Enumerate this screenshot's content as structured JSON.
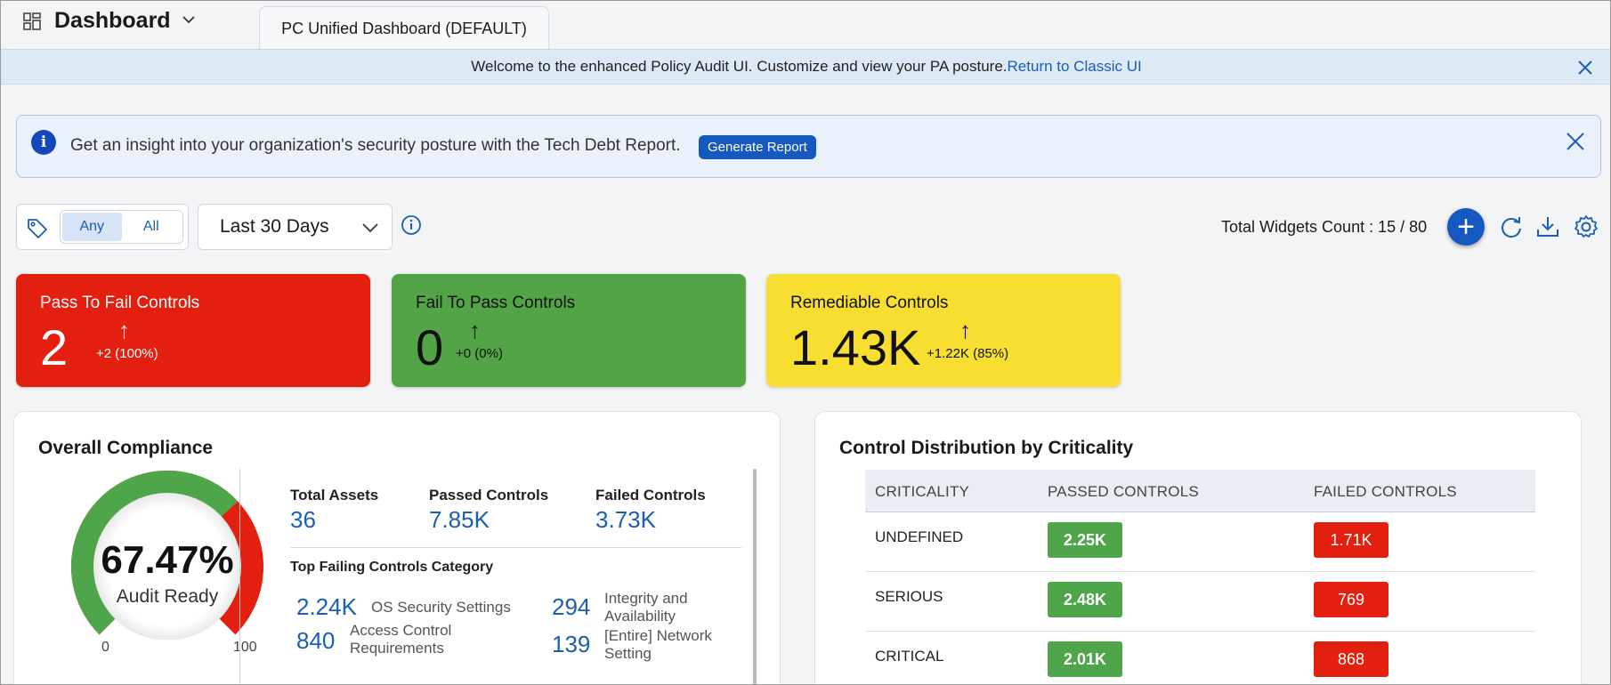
{
  "header": {
    "title": "Dashboard",
    "tab_label": "PC Unified Dashboard (DEFAULT)"
  },
  "welcome_banner": {
    "text": "Welcome to the enhanced Policy Audit UI. Customize and view your PA posture.",
    "link": "Return to Classic UI"
  },
  "insight_banner": {
    "text": "Get an insight into your organization's security posture with the Tech Debt Report.",
    "button": "Generate Report"
  },
  "filters": {
    "tag_options": [
      "Any",
      "All"
    ],
    "selected_tag_option": "Any",
    "date_range": "Last 30 Days"
  },
  "toolbar": {
    "widgets_count": "Total Widgets Count : 15 / 80",
    "add_symbol": "+"
  },
  "kpis": [
    {
      "title": "Pass To Fail Controls",
      "value": "2",
      "arrow": "↑",
      "delta": "+2 (100%)",
      "bg": "#e3200f",
      "fg": "#ffffff"
    },
    {
      "title": "Fail To Pass Controls",
      "value": "0",
      "arrow": "↑",
      "delta": "+0 (0%)",
      "bg": "#52a447",
      "fg": "#111111"
    },
    {
      "title": "Remediable Controls",
      "value": "1.43K",
      "arrow": "↑",
      "delta": "+1.22K (85%)",
      "bg": "#f7de30",
      "fg": "#111111"
    }
  ],
  "compliance": {
    "title": "Overall Compliance",
    "percent_label": "67.47%",
    "percent_value": 67.47,
    "sub_label": "Audit Ready",
    "min_label": "0",
    "max_label": "100",
    "stats": [
      {
        "label": "Total Assets",
        "value": "36"
      },
      {
        "label": "Passed Controls",
        "value": "7.85K"
      },
      {
        "label": "Failed Controls",
        "value": "3.73K"
      }
    ],
    "top_failing_title": "Top Failing Controls Category",
    "top_failing": [
      {
        "value": "2.24K",
        "label": "OS Security Settings"
      },
      {
        "value": "840",
        "label": "Access Control Requirements"
      },
      {
        "value": "294",
        "label": "Integrity and Availability"
      },
      {
        "value": "139",
        "label": "[Entire] Network Setting"
      }
    ]
  },
  "criticality": {
    "title": "Control Distribution by Criticality",
    "columns": [
      "CRITICALITY",
      "PASSED CONTROLS",
      "FAILED CONTROLS"
    ],
    "rows": [
      {
        "criticality": "UNDEFINED",
        "passed": "2.25K",
        "failed": "1.71K"
      },
      {
        "criticality": "SERIOUS",
        "passed": "2.48K",
        "failed": "769"
      },
      {
        "criticality": "CRITICAL",
        "passed": "2.01K",
        "failed": "868"
      }
    ]
  },
  "colors": {
    "accent": "#1558c0",
    "link": "#1a5fb4",
    "pass": "#4fa64a",
    "fail": "#e3200f"
  }
}
